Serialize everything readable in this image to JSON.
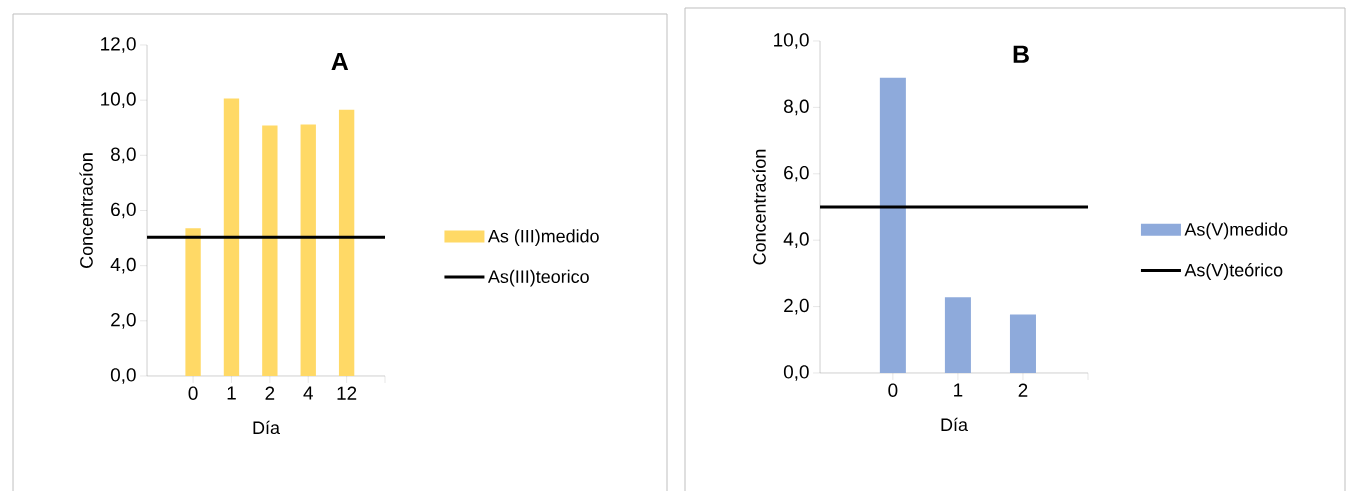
{
  "chart_data": [
    {
      "type": "bar",
      "title": "A",
      "xlabel": "Día",
      "ylabel": "Concentracíon",
      "categories": [
        "0",
        "1",
        "2",
        "4",
        "12"
      ],
      "series": [
        {
          "name": "As (III)medido",
          "color": "#ffd966",
          "values": [
            5.36,
            10.06,
            9.08,
            9.12,
            9.65
          ]
        }
      ],
      "ylim": [
        0,
        12
      ],
      "yticks": [
        {
          "value": 0,
          "label": "0,0"
        },
        {
          "value": 2,
          "label": "2,0"
        },
        {
          "value": 4,
          "label": "4,0"
        },
        {
          "value": 6,
          "label": "6,0"
        },
        {
          "value": 8,
          "label": "8,0"
        },
        {
          "value": 10,
          "label": "10,0"
        },
        {
          "value": 12,
          "label": "12,0"
        }
      ],
      "ref_lines": [
        {
          "axis": "y",
          "value": 5.03,
          "label": "As(III)teorico",
          "color": "#000000"
        }
      ],
      "legend": "right"
    },
    {
      "type": "bar",
      "title": "B",
      "xlabel": "Día",
      "ylabel": "Concentracíon",
      "categories": [
        "0",
        "1",
        "2"
      ],
      "series": [
        {
          "name": "As(V)medido",
          "color": "#8eaadb",
          "values": [
            8.89,
            2.28,
            1.76
          ]
        }
      ],
      "ylim": [
        0,
        10
      ],
      "yticks": [
        {
          "value": 0,
          "label": "0,0"
        },
        {
          "value": 2,
          "label": "2,0"
        },
        {
          "value": 4,
          "label": "4,0"
        },
        {
          "value": 6,
          "label": "6,0"
        },
        {
          "value": 8,
          "label": "8,0"
        },
        {
          "value": 10,
          "label": "10,0"
        }
      ],
      "ref_lines": [
        {
          "axis": "y",
          "value": 5.0,
          "label": "As(V)teórico",
          "color": "#000000"
        }
      ],
      "legend": "right"
    }
  ]
}
